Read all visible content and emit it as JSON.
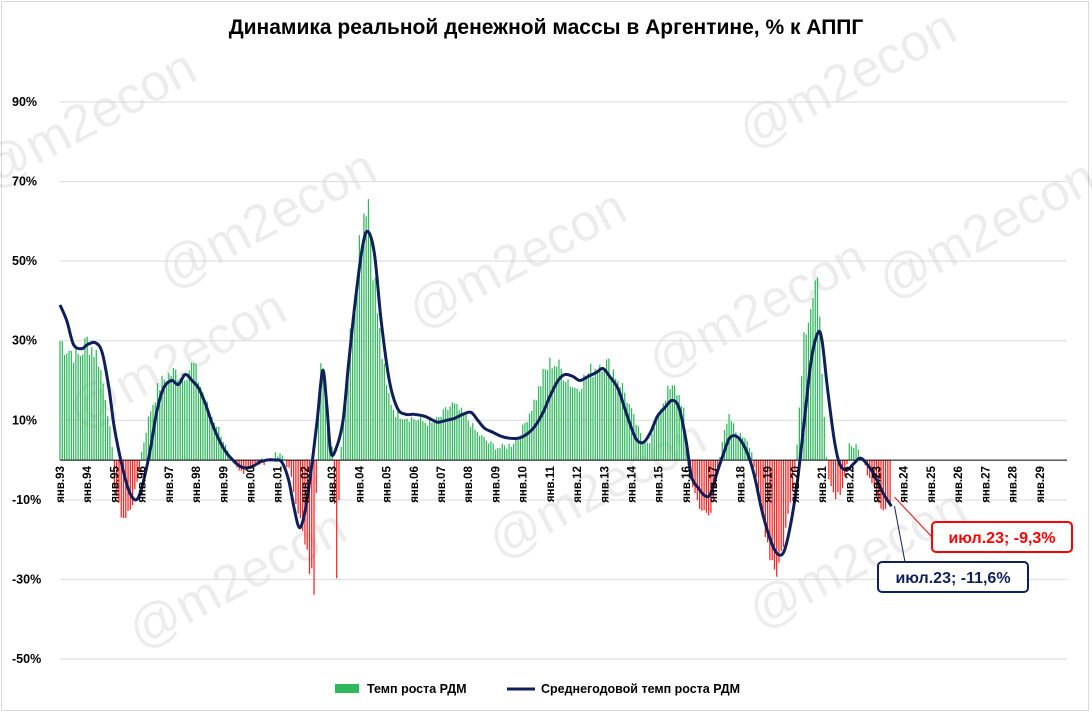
{
  "chart_data": {
    "type": "bar+line",
    "title": "Динамика реальной денежной массы в Аргентине, % к АППГ",
    "yticks": [
      "90%",
      "70%",
      "50%",
      "30%",
      "10%",
      "-10%",
      "-30%",
      "-50%"
    ],
    "ylim": [
      -50,
      90
    ],
    "xticks": [
      "янв.93",
      "янв.94",
      "янв.95",
      "янв.96",
      "янв.97",
      "янв.98",
      "янв.99",
      "янв.00",
      "янв.01",
      "янв.02",
      "янв.03",
      "янв.04",
      "янв.05",
      "янв.06",
      "янв.07",
      "янв.08",
      "янв.09",
      "янв.10",
      "янв.11",
      "янв.12",
      "янв.13",
      "янв.14",
      "янв.15",
      "янв.16",
      "янв.17",
      "янв.18",
      "янв.19",
      "янв.20",
      "янв.21",
      "янв.22",
      "янв.23",
      "янв.24",
      "янв.25",
      "янв.26",
      "янв.27",
      "янв.28",
      "янв.29"
    ],
    "x_start_year": 1993,
    "grid": true,
    "legend_position": "bottom",
    "colors": {
      "positive_bar": "#2eb85c",
      "negative_bar": "#ff2020",
      "line": "#0f1f5c",
      "label_red": "#ff0000",
      "label_navy": "#0f1f5c"
    },
    "series": [
      {
        "name": "Темп роста РДМ",
        "type": "bar",
        "frequency": "monthly",
        "anchors": [
          [
            1993.0,
            30
          ],
          [
            1993.3,
            28
          ],
          [
            1993.7,
            26
          ],
          [
            1994.0,
            30
          ],
          [
            1994.4,
            26
          ],
          [
            1994.7,
            15
          ],
          [
            1994.9,
            4
          ],
          [
            1995.0,
            -6
          ],
          [
            1995.2,
            -13
          ],
          [
            1995.4,
            -15
          ],
          [
            1995.7,
            -10
          ],
          [
            1995.9,
            -3
          ],
          [
            1996.0,
            2
          ],
          [
            1996.3,
            12
          ],
          [
            1996.6,
            18
          ],
          [
            1996.9,
            21
          ],
          [
            1997.2,
            22
          ],
          [
            1997.6,
            22
          ],
          [
            1997.9,
            24
          ],
          [
            1998.1,
            20
          ],
          [
            1998.5,
            12
          ],
          [
            1998.9,
            7
          ],
          [
            1999.1,
            3
          ],
          [
            1999.3,
            -1
          ],
          [
            1999.6,
            -3
          ],
          [
            1999.9,
            -2
          ],
          [
            2000.2,
            -1
          ],
          [
            2000.6,
            0
          ],
          [
            2000.9,
            1
          ],
          [
            2001.2,
            1
          ],
          [
            2001.4,
            -2
          ],
          [
            2001.6,
            -8
          ],
          [
            2001.8,
            -14
          ],
          [
            2002.0,
            -22
          ],
          [
            2002.2,
            -28
          ],
          [
            2002.35,
            -32
          ],
          [
            2002.45,
            5
          ],
          [
            2002.6,
            30
          ],
          [
            2002.75,
            14
          ],
          [
            2002.9,
            8
          ],
          [
            2003.05,
            1
          ],
          [
            2003.15,
            -32
          ],
          [
            2003.3,
            1
          ],
          [
            2003.5,
            20
          ],
          [
            2003.8,
            40
          ],
          [
            2004.0,
            55
          ],
          [
            2004.2,
            65
          ],
          [
            2004.3,
            69
          ],
          [
            2004.45,
            55
          ],
          [
            2004.6,
            42
          ],
          [
            2004.8,
            28
          ],
          [
            2005.0,
            18
          ],
          [
            2005.3,
            12
          ],
          [
            2005.7,
            11
          ],
          [
            2006.2,
            10
          ],
          [
            2006.7,
            9
          ],
          [
            2007.0,
            11
          ],
          [
            2007.4,
            14
          ],
          [
            2007.9,
            11
          ],
          [
            2008.3,
            7
          ],
          [
            2008.8,
            4
          ],
          [
            2009.2,
            3
          ],
          [
            2009.6,
            4
          ],
          [
            2010.0,
            8
          ],
          [
            2010.5,
            16
          ],
          [
            2010.8,
            22
          ],
          [
            2011.1,
            25
          ],
          [
            2011.5,
            22
          ],
          [
            2011.9,
            18
          ],
          [
            2012.2,
            20
          ],
          [
            2012.6,
            23
          ],
          [
            2012.9,
            25
          ],
          [
            2013.3,
            23
          ],
          [
            2013.7,
            18
          ],
          [
            2014.0,
            12
          ],
          [
            2014.4,
            5
          ],
          [
            2014.7,
            5
          ],
          [
            2015.0,
            12
          ],
          [
            2015.3,
            17
          ],
          [
            2015.6,
            18
          ],
          [
            2015.9,
            14
          ],
          [
            2016.1,
            -3
          ],
          [
            2016.4,
            -10
          ],
          [
            2016.7,
            -14
          ],
          [
            2016.9,
            -14
          ],
          [
            2017.1,
            -6
          ],
          [
            2017.3,
            4
          ],
          [
            2017.6,
            11
          ],
          [
            2017.9,
            6
          ],
          [
            2018.2,
            6
          ],
          [
            2018.4,
            3
          ],
          [
            2018.6,
            -6
          ],
          [
            2018.9,
            -17
          ],
          [
            2019.1,
            -24
          ],
          [
            2019.35,
            -28
          ],
          [
            2019.6,
            -20
          ],
          [
            2019.9,
            -8
          ],
          [
            2020.1,
            5
          ],
          [
            2020.3,
            30
          ],
          [
            2020.5,
            38
          ],
          [
            2020.7,
            42
          ],
          [
            2020.8,
            45
          ],
          [
            2020.95,
            30
          ],
          [
            2021.1,
            10
          ],
          [
            2021.2,
            -5
          ],
          [
            2021.5,
            -10
          ],
          [
            2021.8,
            -6
          ],
          [
            2022.0,
            4
          ],
          [
            2022.3,
            3
          ],
          [
            2022.6,
            -2
          ],
          [
            2022.9,
            -6
          ],
          [
            2023.2,
            -13
          ],
          [
            2023.4,
            -12
          ],
          [
            2023.55,
            -9.3
          ]
        ],
        "last_value_label": "июл.23; -9,3%"
      },
      {
        "name": "Среднегодовой темп роста РДМ",
        "type": "line",
        "points": [
          [
            1993.0,
            39
          ],
          [
            1993.25,
            35
          ],
          [
            1993.5,
            29
          ],
          [
            1993.8,
            28
          ],
          [
            1994.0,
            29
          ],
          [
            1994.3,
            29.5
          ],
          [
            1994.55,
            27
          ],
          [
            1994.8,
            18
          ],
          [
            1995.0,
            8
          ],
          [
            1995.3,
            -2
          ],
          [
            1995.55,
            -8
          ],
          [
            1995.8,
            -10
          ],
          [
            1996.0,
            -7
          ],
          [
            1996.3,
            2
          ],
          [
            1996.55,
            12
          ],
          [
            1996.8,
            18
          ],
          [
            1997.1,
            20
          ],
          [
            1997.35,
            19
          ],
          [
            1997.6,
            21.5
          ],
          [
            1997.85,
            20
          ],
          [
            1998.1,
            18
          ],
          [
            1998.35,
            14
          ],
          [
            1998.6,
            9
          ],
          [
            1998.85,
            5
          ],
          [
            1999.1,
            2
          ],
          [
            1999.35,
            0
          ],
          [
            1999.6,
            -1.5
          ],
          [
            1999.85,
            -2
          ],
          [
            2000.1,
            -1.5
          ],
          [
            2000.35,
            -0.5
          ],
          [
            2000.6,
            0
          ],
          [
            2000.9,
            0
          ],
          [
            2001.15,
            -0.5
          ],
          [
            2001.4,
            -5
          ],
          [
            2001.6,
            -12
          ],
          [
            2001.8,
            -17
          ],
          [
            2002.0,
            -13
          ],
          [
            2002.2,
            -4
          ],
          [
            2002.45,
            10
          ],
          [
            2002.65,
            22.5
          ],
          [
            2002.8,
            14
          ],
          [
            2002.95,
            2
          ],
          [
            2003.15,
            3
          ],
          [
            2003.4,
            10
          ],
          [
            2003.6,
            24
          ],
          [
            2003.85,
            40
          ],
          [
            2004.1,
            53
          ],
          [
            2004.3,
            57.5
          ],
          [
            2004.55,
            52
          ],
          [
            2004.8,
            35
          ],
          [
            2005.1,
            20
          ],
          [
            2005.4,
            13
          ],
          [
            2005.7,
            11.5
          ],
          [
            2006.0,
            11.5
          ],
          [
            2006.4,
            11
          ],
          [
            2006.7,
            10
          ],
          [
            2006.9,
            9.5
          ],
          [
            2007.2,
            10
          ],
          [
            2007.5,
            10.5
          ],
          [
            2007.8,
            11.5
          ],
          [
            2008.1,
            12
          ],
          [
            2008.35,
            10
          ],
          [
            2008.6,
            8
          ],
          [
            2008.9,
            7
          ],
          [
            2009.2,
            6
          ],
          [
            2009.5,
            5.5
          ],
          [
            2009.85,
            5.5
          ],
          [
            2010.15,
            6.5
          ],
          [
            2010.45,
            8.5
          ],
          [
            2010.75,
            12
          ],
          [
            2011.0,
            16
          ],
          [
            2011.3,
            20
          ],
          [
            2011.55,
            21.5
          ],
          [
            2011.85,
            21
          ],
          [
            2012.1,
            20
          ],
          [
            2012.4,
            21
          ],
          [
            2012.7,
            22
          ],
          [
            2012.95,
            23
          ],
          [
            2013.2,
            21
          ],
          [
            2013.5,
            18
          ],
          [
            2013.75,
            13
          ],
          [
            2014.0,
            8
          ],
          [
            2014.2,
            5
          ],
          [
            2014.45,
            4.5
          ],
          [
            2014.7,
            7
          ],
          [
            2014.95,
            11
          ],
          [
            2015.2,
            13
          ],
          [
            2015.5,
            15
          ],
          [
            2015.75,
            13
          ],
          [
            2016.0,
            5
          ],
          [
            2016.2,
            -4
          ],
          [
            2016.45,
            -7
          ],
          [
            2016.7,
            -9
          ],
          [
            2016.9,
            -8.5
          ],
          [
            2017.15,
            -3
          ],
          [
            2017.4,
            2
          ],
          [
            2017.6,
            5.5
          ],
          [
            2017.85,
            6
          ],
          [
            2018.1,
            4
          ],
          [
            2018.35,
            0
          ],
          [
            2018.55,
            -5
          ],
          [
            2018.8,
            -13
          ],
          [
            2019.1,
            -20
          ],
          [
            2019.35,
            -23.5
          ],
          [
            2019.6,
            -23
          ],
          [
            2019.85,
            -16
          ],
          [
            2020.1,
            -5
          ],
          [
            2020.35,
            10
          ],
          [
            2020.6,
            25
          ],
          [
            2020.85,
            32
          ],
          [
            2021.0,
            30
          ],
          [
            2021.2,
            18
          ],
          [
            2021.45,
            5
          ],
          [
            2021.65,
            -1
          ],
          [
            2021.9,
            -2.5
          ],
          [
            2022.15,
            -1
          ],
          [
            2022.4,
            0.5
          ],
          [
            2022.65,
            -1
          ],
          [
            2022.9,
            -3.5
          ],
          [
            2023.15,
            -7
          ],
          [
            2023.3,
            -9
          ],
          [
            2023.55,
            -11.6
          ]
        ],
        "last_value_label": "июл.23; -11,6%"
      }
    ]
  },
  "watermark": "@m2econ"
}
